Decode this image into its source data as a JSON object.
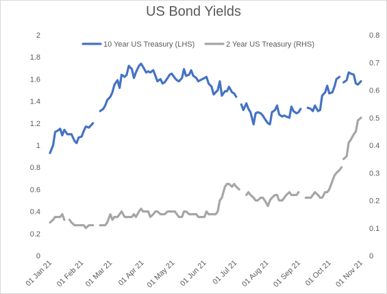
{
  "chart_data": {
    "type": "line",
    "title": "US Bond Yields",
    "xlabel": "",
    "ylabel": "",
    "grid": false,
    "legend_position": "top",
    "x_ticks": [
      "01 Jan 21",
      "01 Feb 21",
      "01 Mar 21",
      "01 Apr 21",
      "01 May 21",
      "01 Jun 21",
      "01 Jul 21",
      "01 Aug 21",
      "01 Sep 21",
      "01 Oct 21",
      "01 Nov 21"
    ],
    "y_left": {
      "min": 0,
      "max": 2,
      "step": 0.2,
      "ticks": [
        "0",
        "0.2",
        "0.4",
        "0.6",
        "0.8",
        "1",
        "1.2",
        "1.4",
        "1.6",
        "1.8",
        "2"
      ]
    },
    "y_right": {
      "min": 0,
      "max": 0.8,
      "step": 0.1,
      "ticks": [
        "0",
        "0.1",
        "0.2",
        "0.3",
        "0.4",
        "0.5",
        "0.6",
        "0.7",
        "0.8"
      ]
    },
    "series": [
      {
        "name": "10 Year US Treasury (LHS)",
        "axis": "left",
        "color": "#4472c4",
        "points": [
          [
            "2021-01-01",
            0.93
          ],
          [
            "2021-01-04",
            1.0
          ],
          [
            "2021-01-06",
            1.12
          ],
          [
            "2021-01-08",
            1.13
          ],
          [
            "2021-01-11",
            1.15
          ],
          [
            "2021-01-13",
            1.09
          ],
          [
            "2021-01-15",
            1.14
          ],
          [
            "2021-01-18",
            1.1
          ],
          [
            "2021-01-20",
            1.1
          ],
          [
            "2021-01-22",
            1.1
          ],
          [
            "2021-01-25",
            1.04
          ],
          [
            "2021-01-27",
            1.02
          ],
          [
            "2021-01-29",
            1.07
          ],
          [
            "2021-02-01",
            1.08
          ],
          [
            "2021-02-03",
            1.13
          ],
          [
            "2021-02-05",
            1.17
          ],
          [
            "2021-02-08",
            1.16
          ],
          [
            "2021-02-10",
            1.18
          ],
          [
            "2021-02-12",
            1.2
          ],
          null,
          [
            "2021-02-19",
            1.31
          ],
          [
            "2021-02-22",
            1.33
          ],
          [
            "2021-02-24",
            1.36
          ],
          [
            "2021-02-26",
            1.41
          ],
          [
            "2021-03-01",
            1.44
          ],
          [
            "2021-03-03",
            1.48
          ],
          [
            "2021-03-05",
            1.55
          ],
          [
            "2021-03-08",
            1.59
          ],
          [
            "2021-03-10",
            1.52
          ],
          [
            "2021-03-12",
            1.64
          ],
          [
            "2021-03-15",
            1.62
          ],
          [
            "2021-03-17",
            1.64
          ],
          [
            "2021-03-19",
            1.72
          ],
          [
            "2021-03-22",
            1.69
          ],
          [
            "2021-03-24",
            1.61
          ],
          [
            "2021-03-26",
            1.66
          ],
          [
            "2021-03-29",
            1.72
          ],
          [
            "2021-03-31",
            1.74
          ],
          [
            "2021-04-02",
            1.71
          ],
          [
            "2021-04-05",
            1.66
          ],
          [
            "2021-04-07",
            1.67
          ],
          [
            "2021-04-09",
            1.66
          ],
          [
            "2021-04-12",
            1.68
          ],
          [
            "2021-04-14",
            1.63
          ],
          [
            "2021-04-16",
            1.58
          ],
          [
            "2021-04-19",
            1.6
          ],
          [
            "2021-04-21",
            1.56
          ],
          [
            "2021-04-23",
            1.57
          ],
          [
            "2021-04-26",
            1.61
          ],
          [
            "2021-04-28",
            1.64
          ],
          [
            "2021-04-30",
            1.65
          ],
          [
            "2021-05-03",
            1.61
          ],
          [
            "2021-05-05",
            1.59
          ],
          [
            "2021-05-07",
            1.58
          ],
          [
            "2021-05-10",
            1.61
          ],
          [
            "2021-05-12",
            1.69
          ],
          [
            "2021-05-14",
            1.63
          ],
          [
            "2021-05-17",
            1.64
          ],
          [
            "2021-05-19",
            1.68
          ],
          [
            "2021-05-21",
            1.63
          ],
          [
            "2021-05-24",
            1.61
          ],
          [
            "2021-05-26",
            1.58
          ],
          [
            "2021-05-28",
            1.59
          ],
          [
            "2021-06-01",
            1.61
          ],
          [
            "2021-06-03",
            1.62
          ],
          [
            "2021-06-05",
            1.56
          ],
          [
            "2021-06-08",
            1.53
          ],
          [
            "2021-06-10",
            1.46
          ],
          [
            "2021-06-14",
            1.5
          ],
          [
            "2021-06-16",
            1.58
          ],
          [
            "2021-06-18",
            1.45
          ],
          [
            "2021-06-21",
            1.49
          ],
          [
            "2021-06-23",
            1.49
          ],
          [
            "2021-06-25",
            1.53
          ],
          [
            "2021-06-28",
            1.48
          ],
          [
            "2021-06-30",
            1.47
          ],
          [
            "2021-07-02",
            1.44
          ],
          null,
          [
            "2021-07-07",
            1.37
          ],
          [
            "2021-07-09",
            1.32
          ],
          [
            "2021-07-12",
            1.38
          ],
          [
            "2021-07-14",
            1.33
          ],
          [
            "2021-07-16",
            1.3
          ],
          [
            "2021-07-19",
            1.19
          ],
          [
            "2021-07-21",
            1.29
          ],
          [
            "2021-07-23",
            1.3
          ],
          [
            "2021-07-26",
            1.29
          ],
          [
            "2021-07-28",
            1.27
          ],
          [
            "2021-07-30",
            1.24
          ],
          [
            "2021-08-02",
            1.2
          ],
          [
            "2021-08-04",
            1.19
          ],
          [
            "2021-08-06",
            1.3
          ],
          [
            "2021-08-09",
            1.32
          ],
          [
            "2021-08-11",
            1.36
          ],
          [
            "2021-08-13",
            1.28
          ],
          [
            "2021-08-16",
            1.26
          ],
          [
            "2021-08-18",
            1.27
          ],
          [
            "2021-08-20",
            1.26
          ],
          [
            "2021-08-23",
            1.25
          ],
          [
            "2021-08-25",
            1.35
          ],
          [
            "2021-08-27",
            1.31
          ],
          [
            "2021-08-30",
            1.29
          ],
          [
            "2021-09-01",
            1.3
          ],
          [
            "2021-09-03",
            1.33
          ],
          null,
          [
            "2021-09-10",
            1.34
          ],
          [
            "2021-09-13",
            1.33
          ],
          [
            "2021-09-15",
            1.31
          ],
          [
            "2021-09-17",
            1.36
          ],
          [
            "2021-09-20",
            1.31
          ],
          [
            "2021-09-22",
            1.32
          ],
          [
            "2021-09-24",
            1.45
          ],
          [
            "2021-09-27",
            1.48
          ],
          [
            "2021-09-29",
            1.54
          ],
          [
            "2021-10-01",
            1.47
          ],
          [
            "2021-10-04",
            1.48
          ],
          [
            "2021-10-06",
            1.53
          ],
          [
            "2021-10-08",
            1.6
          ],
          [
            "2021-10-11",
            1.62
          ],
          null,
          [
            "2021-10-15",
            1.57
          ],
          [
            "2021-10-18",
            1.59
          ],
          [
            "2021-10-20",
            1.66
          ],
          [
            "2021-10-22",
            1.65
          ],
          [
            "2021-10-25",
            1.64
          ],
          [
            "2021-10-27",
            1.56
          ],
          [
            "2021-10-29",
            1.55
          ],
          [
            "2021-11-01",
            1.58
          ]
        ]
      },
      {
        "name": "2 Year US Treasury (RHS)",
        "axis": "right",
        "color": "#a5a5a5",
        "points": [
          [
            "2021-01-01",
            0.12
          ],
          [
            "2021-01-04",
            0.13
          ],
          [
            "2021-01-06",
            0.14
          ],
          [
            "2021-01-08",
            0.14
          ],
          [
            "2021-01-11",
            0.14
          ],
          [
            "2021-01-13",
            0.15
          ],
          [
            "2021-01-15",
            0.13
          ],
          null,
          [
            "2021-01-20",
            0.13
          ],
          [
            "2021-01-22",
            0.12
          ],
          [
            "2021-01-25",
            0.11
          ],
          [
            "2021-01-27",
            0.11
          ],
          [
            "2021-01-29",
            0.11
          ],
          [
            "2021-02-01",
            0.11
          ],
          [
            "2021-02-03",
            0.11
          ],
          [
            "2021-02-05",
            0.1
          ],
          [
            "2021-02-08",
            0.11
          ],
          [
            "2021-02-10",
            0.11
          ],
          [
            "2021-02-12",
            0.11
          ],
          null,
          [
            "2021-02-19",
            0.11
          ],
          [
            "2021-02-22",
            0.11
          ],
          [
            "2021-02-24",
            0.11
          ],
          [
            "2021-02-26",
            0.12
          ],
          [
            "2021-03-01",
            0.15
          ],
          [
            "2021-03-03",
            0.13
          ],
          [
            "2021-03-05",
            0.14
          ],
          [
            "2021-03-08",
            0.14
          ],
          [
            "2021-03-10",
            0.15
          ],
          [
            "2021-03-12",
            0.16
          ],
          [
            "2021-03-15",
            0.14
          ],
          [
            "2021-03-17",
            0.14
          ],
          [
            "2021-03-19",
            0.14
          ],
          [
            "2021-03-22",
            0.14
          ],
          [
            "2021-03-24",
            0.15
          ],
          [
            "2021-03-26",
            0.14
          ],
          [
            "2021-03-29",
            0.16
          ],
          [
            "2021-03-31",
            0.17
          ],
          [
            "2021-04-02",
            0.16
          ],
          [
            "2021-04-05",
            0.16
          ],
          [
            "2021-04-07",
            0.16
          ],
          [
            "2021-04-09",
            0.14
          ],
          [
            "2021-04-12",
            0.15
          ],
          [
            "2021-04-14",
            0.16
          ],
          [
            "2021-04-16",
            0.16
          ],
          [
            "2021-04-19",
            0.15
          ],
          [
            "2021-04-21",
            0.15
          ],
          [
            "2021-04-23",
            0.15
          ],
          [
            "2021-04-26",
            0.16
          ],
          [
            "2021-04-28",
            0.16
          ],
          [
            "2021-04-30",
            0.16
          ],
          [
            "2021-05-03",
            0.16
          ],
          [
            "2021-05-05",
            0.15
          ],
          [
            "2021-05-07",
            0.14
          ],
          [
            "2021-05-10",
            0.14
          ],
          [
            "2021-05-12",
            0.16
          ],
          [
            "2021-05-14",
            0.16
          ],
          [
            "2021-05-17",
            0.15
          ],
          [
            "2021-05-19",
            0.15
          ],
          [
            "2021-05-21",
            0.15
          ],
          [
            "2021-05-24",
            0.15
          ],
          [
            "2021-05-26",
            0.14
          ],
          [
            "2021-05-28",
            0.14
          ],
          [
            "2021-06-01",
            0.14
          ],
          [
            "2021-06-03",
            0.16
          ],
          [
            "2021-06-05",
            0.15
          ],
          [
            "2021-06-08",
            0.15
          ],
          [
            "2021-06-10",
            0.15
          ],
          [
            "2021-06-12",
            0.15
          ],
          [
            "2021-06-14",
            0.16
          ],
          [
            "2021-06-16",
            0.2
          ],
          [
            "2021-06-18",
            0.21
          ],
          [
            "2021-06-21",
            0.25
          ],
          [
            "2021-06-23",
            0.26
          ],
          [
            "2021-06-25",
            0.26
          ],
          [
            "2021-06-28",
            0.25
          ],
          [
            "2021-06-30",
            0.26
          ],
          [
            "2021-07-02",
            0.25
          ],
          [
            "2021-07-05",
            0.24
          ],
          null,
          [
            "2021-07-12",
            0.22
          ],
          [
            "2021-07-14",
            0.23
          ],
          [
            "2021-07-16",
            0.22
          ],
          [
            "2021-07-19",
            0.21
          ],
          [
            "2021-07-21",
            0.2
          ],
          [
            "2021-07-23",
            0.2
          ],
          [
            "2021-07-26",
            0.21
          ],
          [
            "2021-07-28",
            0.21
          ],
          [
            "2021-07-30",
            0.2
          ],
          [
            "2021-08-02",
            0.18
          ],
          [
            "2021-08-04",
            0.2
          ],
          [
            "2021-08-06",
            0.21
          ],
          [
            "2021-08-09",
            0.22
          ],
          [
            "2021-08-11",
            0.22
          ],
          [
            "2021-08-13",
            0.2
          ],
          [
            "2021-08-16",
            0.2
          ],
          [
            "2021-08-18",
            0.21
          ],
          [
            "2021-08-20",
            0.22
          ],
          [
            "2021-08-23",
            0.23
          ],
          [
            "2021-08-25",
            0.22
          ],
          [
            "2021-08-27",
            0.22
          ],
          [
            "2021-08-30",
            0.22
          ],
          [
            "2021-09-01",
            0.23
          ],
          null,
          [
            "2021-09-08",
            0.21
          ],
          [
            "2021-09-10",
            0.21
          ],
          [
            "2021-09-13",
            0.21
          ],
          [
            "2021-09-15",
            0.22
          ],
          [
            "2021-09-17",
            0.23
          ],
          [
            "2021-09-20",
            0.22
          ],
          [
            "2021-09-22",
            0.21
          ],
          [
            "2021-09-24",
            0.21
          ],
          [
            "2021-09-27",
            0.23
          ],
          [
            "2021-09-29",
            0.23
          ],
          [
            "2021-10-01",
            0.24
          ],
          [
            "2021-10-04",
            0.27
          ],
          [
            "2021-10-06",
            0.29
          ],
          [
            "2021-10-08",
            0.3
          ],
          [
            "2021-10-11",
            0.31
          ],
          [
            "2021-10-13",
            0.32
          ],
          null,
          [
            "2021-10-15",
            0.35
          ],
          [
            "2021-10-18",
            0.36
          ],
          [
            "2021-10-20",
            0.41
          ],
          [
            "2021-10-22",
            0.42
          ],
          [
            "2021-10-25",
            0.44
          ],
          [
            "2021-10-27",
            0.45
          ],
          [
            "2021-10-29",
            0.49
          ],
          [
            "2021-11-01",
            0.5
          ]
        ]
      }
    ]
  }
}
